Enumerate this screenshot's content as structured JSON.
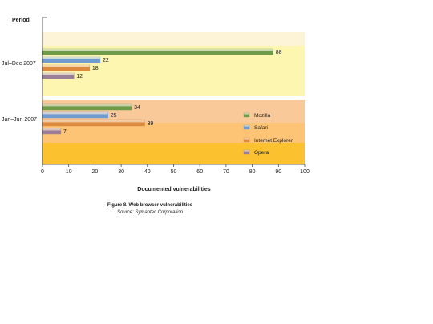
{
  "chart_data": {
    "type": "bar",
    "orientation": "horizontal",
    "ylabel": "Period",
    "xlabel": "Documented vulnerabilities",
    "xlim": [
      0,
      100
    ],
    "xticks": [
      0,
      10,
      20,
      30,
      40,
      50,
      60,
      70,
      80,
      90,
      100
    ],
    "categories": [
      "Jul–Dec 2007",
      "Jan–Jun 2007"
    ],
    "series": [
      {
        "name": "Mozilla",
        "values": [
          88,
          34
        ]
      },
      {
        "name": "Safari",
        "values": [
          22,
          25
        ]
      },
      {
        "name": "Internet Explorer",
        "values": [
          18,
          39
        ]
      },
      {
        "name": "Opera",
        "values": [
          12,
          7
        ]
      }
    ],
    "data_labels": true,
    "legend_position": "right",
    "colors": {
      "Mozilla": "#6f9a4a",
      "Safari": "#6f9bd0",
      "Internet Explorer": "#dd8a3e",
      "Opera": "#9a7f97",
      "band_top": "#fdf3d6",
      "band_jul_dec": "#fdf6b0",
      "band_mid": "#f9c99a",
      "band_jan_jun": "#fcc474",
      "band_bottom": "#fcc12f"
    },
    "grid": false
  },
  "caption": {
    "title": "Figure 8. Web browser vulnerabilities",
    "source": "Source: Symantec Corporation"
  }
}
